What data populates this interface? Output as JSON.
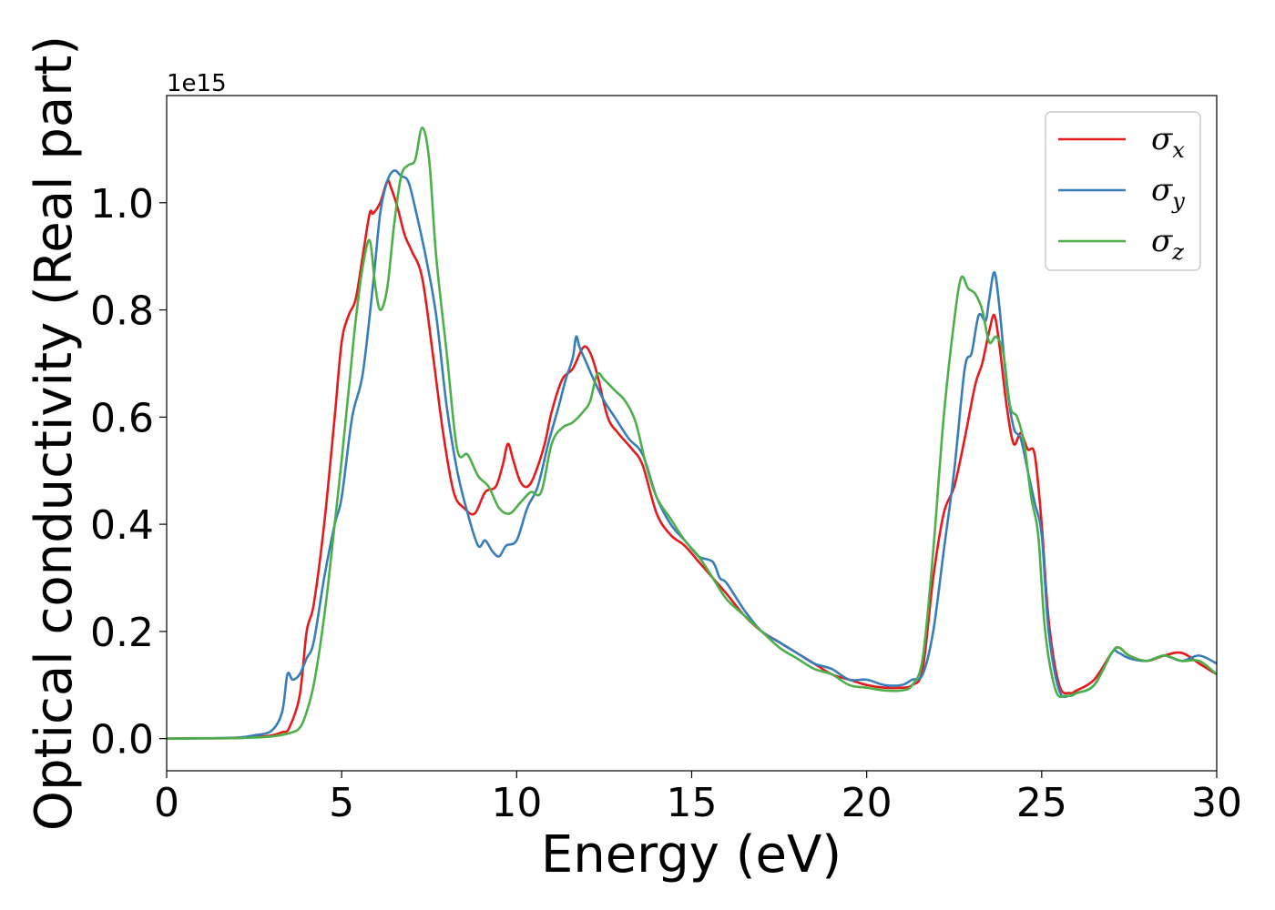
{
  "chart_data": {
    "type": "line",
    "title": "",
    "xlabel": "Energy (eV)",
    "ylabel": "Optical conductivity (Real part)",
    "y_offset_label": "1e15",
    "xlim": [
      0,
      30
    ],
    "ylim": [
      -0.06,
      1.2
    ],
    "xticks": [
      0,
      5,
      10,
      15,
      20,
      25,
      30
    ],
    "xtick_labels": [
      "0",
      "5",
      "10",
      "15",
      "20",
      "25",
      "30"
    ],
    "yticks": [
      0.0,
      0.2,
      0.4,
      0.6,
      0.8,
      1.0
    ],
    "ytick_labels": [
      "0.0",
      "0.2",
      "0.4",
      "0.6",
      "0.8",
      "1.0"
    ],
    "grid": false,
    "legend_position": "top-right",
    "series": [
      {
        "symbol": "σ",
        "subscript": "x",
        "color": "#e41a1c",
        "x": [
          0,
          1,
          2,
          2.5,
          3,
          3.3,
          3.5,
          3.8,
          4.0,
          4.2,
          4.5,
          4.8,
          5.0,
          5.2,
          5.4,
          5.6,
          5.8,
          5.9,
          6.1,
          6.3,
          6.4,
          6.6,
          6.8,
          7.0,
          7.3,
          7.6,
          7.9,
          8.2,
          8.5,
          8.8,
          9.1,
          9.4,
          9.6,
          9.75,
          9.9,
          10.1,
          10.3,
          10.5,
          10.8,
          11.0,
          11.3,
          11.6,
          11.9,
          12.1,
          12.3,
          12.6,
          12.9,
          13.3,
          13.6,
          14.0,
          14.4,
          14.8,
          15.2,
          15.6,
          16.0,
          16.5,
          17.0,
          17.5,
          18.0,
          18.5,
          19.0,
          19.5,
          20.0,
          20.5,
          21.0,
          21.3,
          21.6,
          21.9,
          22.2,
          22.5,
          22.8,
          23.1,
          23.3,
          23.5,
          23.65,
          23.8,
          24.0,
          24.2,
          24.4,
          24.6,
          24.8,
          25.0,
          25.2,
          25.5,
          25.8,
          26.0,
          26.5,
          27.0,
          27.2,
          27.5,
          28.0,
          28.5,
          29.0,
          29.5,
          30.0
        ],
        "y": [
          0,
          0.0005,
          0.001,
          0.003,
          0.006,
          0.012,
          0.02,
          0.08,
          0.2,
          0.25,
          0.4,
          0.6,
          0.74,
          0.79,
          0.82,
          0.9,
          0.98,
          0.98,
          1.0,
          1.04,
          1.03,
          0.99,
          0.94,
          0.91,
          0.86,
          0.72,
          0.57,
          0.46,
          0.43,
          0.42,
          0.46,
          0.47,
          0.51,
          0.55,
          0.52,
          0.48,
          0.47,
          0.49,
          0.55,
          0.61,
          0.67,
          0.69,
          0.73,
          0.72,
          0.68,
          0.6,
          0.57,
          0.54,
          0.51,
          0.42,
          0.38,
          0.36,
          0.33,
          0.3,
          0.27,
          0.23,
          0.2,
          0.18,
          0.16,
          0.14,
          0.12,
          0.11,
          0.1,
          0.095,
          0.095,
          0.1,
          0.13,
          0.3,
          0.42,
          0.47,
          0.56,
          0.66,
          0.7,
          0.76,
          0.79,
          0.73,
          0.62,
          0.55,
          0.57,
          0.54,
          0.53,
          0.4,
          0.22,
          0.1,
          0.085,
          0.09,
          0.11,
          0.16,
          0.17,
          0.155,
          0.145,
          0.155,
          0.16,
          0.14,
          0.12
        ]
      },
      {
        "symbol": "σ",
        "subscript": "y",
        "color": "#377eb8",
        "x": [
          0,
          1,
          2,
          2.5,
          3,
          3.3,
          3.45,
          3.6,
          3.8,
          4.0,
          4.2,
          4.5,
          4.8,
          5.0,
          5.3,
          5.6,
          5.9,
          6.1,
          6.3,
          6.5,
          6.7,
          6.9,
          7.1,
          7.4,
          7.7,
          8.0,
          8.3,
          8.6,
          8.9,
          9.1,
          9.3,
          9.5,
          9.7,
          10.0,
          10.3,
          10.6,
          10.9,
          11.2,
          11.4,
          11.6,
          11.7,
          11.8,
          12.0,
          12.2,
          12.5,
          12.8,
          13.2,
          13.6,
          14.0,
          14.4,
          14.8,
          15.2,
          15.6,
          15.8,
          16.0,
          16.5,
          17.0,
          17.5,
          18.0,
          18.5,
          19.0,
          19.5,
          20.0,
          20.5,
          21.0,
          21.3,
          21.6,
          21.9,
          22.2,
          22.5,
          22.8,
          23.0,
          23.2,
          23.4,
          23.5,
          23.65,
          23.8,
          24.0,
          24.2,
          24.4,
          24.6,
          24.8,
          25.0,
          25.2,
          25.5,
          25.8,
          26.0,
          26.5,
          27.0,
          27.2,
          27.5,
          28.0,
          28.5,
          29.0,
          29.5,
          30.0
        ],
        "y": [
          0,
          0.0005,
          0.002,
          0.006,
          0.015,
          0.05,
          0.12,
          0.11,
          0.12,
          0.15,
          0.18,
          0.3,
          0.4,
          0.45,
          0.6,
          0.68,
          0.85,
          0.98,
          1.04,
          1.06,
          1.05,
          1.04,
          0.99,
          0.9,
          0.79,
          0.62,
          0.5,
          0.42,
          0.36,
          0.37,
          0.35,
          0.34,
          0.36,
          0.37,
          0.43,
          0.47,
          0.55,
          0.62,
          0.67,
          0.71,
          0.75,
          0.73,
          0.7,
          0.67,
          0.63,
          0.6,
          0.56,
          0.53,
          0.45,
          0.4,
          0.37,
          0.34,
          0.33,
          0.3,
          0.29,
          0.24,
          0.2,
          0.18,
          0.16,
          0.14,
          0.13,
          0.11,
          0.11,
          0.1,
          0.1,
          0.11,
          0.12,
          0.2,
          0.35,
          0.5,
          0.69,
          0.72,
          0.79,
          0.78,
          0.82,
          0.87,
          0.8,
          0.66,
          0.58,
          0.56,
          0.5,
          0.44,
          0.38,
          0.2,
          0.09,
          0.08,
          0.085,
          0.1,
          0.16,
          0.16,
          0.15,
          0.145,
          0.155,
          0.145,
          0.155,
          0.14
        ]
      },
      {
        "symbol": "σ",
        "subscript": "z",
        "color": "#4daf4a",
        "x": [
          0,
          1,
          2,
          2.5,
          3,
          3.5,
          3.8,
          4.0,
          4.2,
          4.4,
          4.6,
          4.8,
          5.0,
          5.2,
          5.4,
          5.6,
          5.8,
          5.95,
          6.1,
          6.3,
          6.5,
          6.7,
          6.9,
          7.1,
          7.3,
          7.5,
          7.7,
          8.0,
          8.3,
          8.6,
          8.9,
          9.2,
          9.5,
          9.8,
          10.1,
          10.4,
          10.7,
          11.0,
          11.3,
          11.6,
          11.9,
          12.1,
          12.3,
          12.5,
          12.8,
          13.1,
          13.4,
          13.7,
          14.0,
          14.4,
          14.8,
          15.2,
          15.6,
          16.0,
          16.5,
          17.0,
          17.5,
          18.0,
          18.5,
          19.0,
          19.5,
          20.0,
          20.5,
          21.0,
          21.3,
          21.6,
          21.9,
          22.2,
          22.5,
          22.7,
          22.9,
          23.1,
          23.3,
          23.5,
          23.7,
          23.9,
          24.1,
          24.3,
          24.5,
          24.7,
          24.9,
          25.1,
          25.4,
          25.7,
          26.0,
          26.5,
          27.0,
          27.2,
          27.5,
          28.0,
          28.5,
          29.0,
          29.5,
          30.0
        ],
        "y": [
          0,
          0.0005,
          0.001,
          0.002,
          0.004,
          0.01,
          0.02,
          0.05,
          0.1,
          0.18,
          0.28,
          0.4,
          0.52,
          0.65,
          0.78,
          0.88,
          0.93,
          0.85,
          0.8,
          0.84,
          0.96,
          1.05,
          1.07,
          1.08,
          1.14,
          1.08,
          0.9,
          0.72,
          0.54,
          0.53,
          0.49,
          0.47,
          0.43,
          0.42,
          0.44,
          0.46,
          0.46,
          0.55,
          0.58,
          0.59,
          0.61,
          0.63,
          0.68,
          0.67,
          0.65,
          0.63,
          0.59,
          0.51,
          0.45,
          0.41,
          0.37,
          0.34,
          0.3,
          0.26,
          0.23,
          0.2,
          0.17,
          0.15,
          0.13,
          0.12,
          0.1,
          0.095,
          0.09,
          0.09,
          0.1,
          0.15,
          0.35,
          0.6,
          0.78,
          0.86,
          0.84,
          0.83,
          0.8,
          0.74,
          0.75,
          0.72,
          0.62,
          0.6,
          0.55,
          0.45,
          0.38,
          0.2,
          0.09,
          0.08,
          0.085,
          0.1,
          0.16,
          0.17,
          0.155,
          0.145,
          0.155,
          0.145,
          0.145,
          0.12
        ]
      }
    ]
  }
}
